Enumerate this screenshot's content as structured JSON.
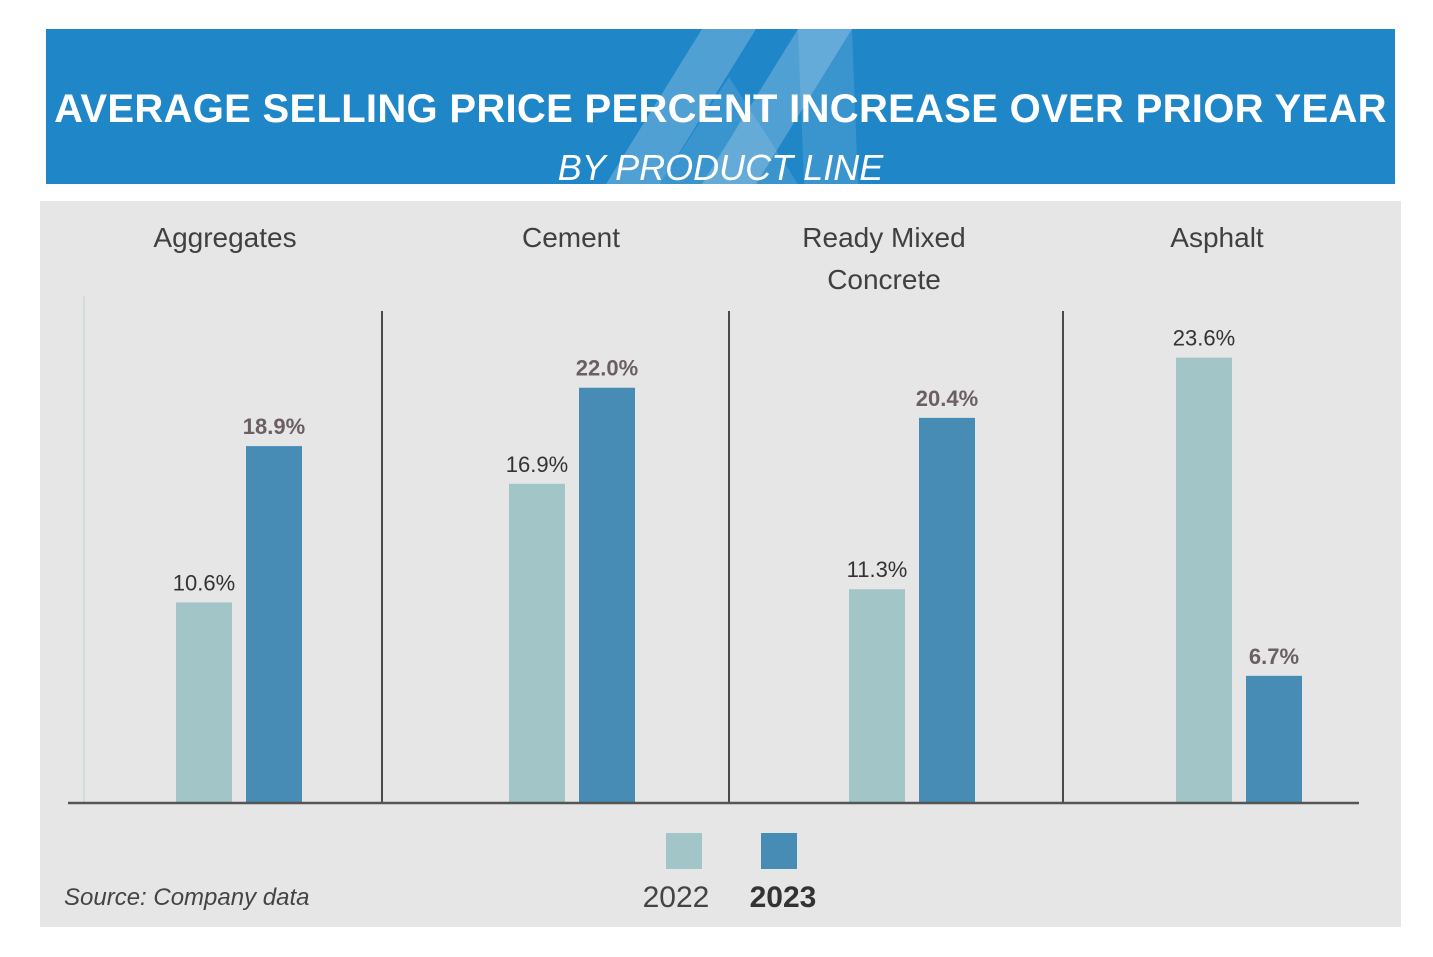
{
  "header": {
    "title": "AVERAGE SELLING PRICE PERCENT INCREASE OVER PRIOR YEAR",
    "subtitle": "BY PRODUCT LINE"
  },
  "source": "Source: Company data",
  "colors": {
    "banner": "#1f86c8",
    "panel": "#e6e6e6",
    "series_2022": "#a2c6c7",
    "series_2023": "#468cb5",
    "label_2022": "#333333",
    "label_2023": "#6b5f63"
  },
  "chart_data": {
    "type": "bar",
    "title": "AVERAGE SELLING PRICE PERCENT INCREASE OVER PRIOR YEAR",
    "subtitle": "BY PRODUCT LINE",
    "categories": [
      "Aggregates",
      "Cement",
      "Ready Mixed Concrete",
      "Asphalt"
    ],
    "category_label_lines": [
      [
        "Aggregates"
      ],
      [
        "Cement"
      ],
      [
        "Ready Mixed",
        "Concrete"
      ],
      [
        "Asphalt"
      ]
    ],
    "series": [
      {
        "name": "2022",
        "values": [
          10.6,
          16.9,
          11.3,
          23.6
        ],
        "labels": [
          "10.6%",
          "16.9%",
          "11.3%",
          "23.6%"
        ]
      },
      {
        "name": "2023",
        "values": [
          18.9,
          22.0,
          20.4,
          6.7
        ],
        "labels": [
          "18.9%",
          "22.0%",
          "20.4%",
          "6.7%"
        ]
      }
    ],
    "ylim": [
      0,
      24
    ],
    "xlabel": "",
    "ylabel": "",
    "legend": [
      "2022",
      "2023"
    ],
    "legend_position": "bottom-center",
    "grid": false
  }
}
